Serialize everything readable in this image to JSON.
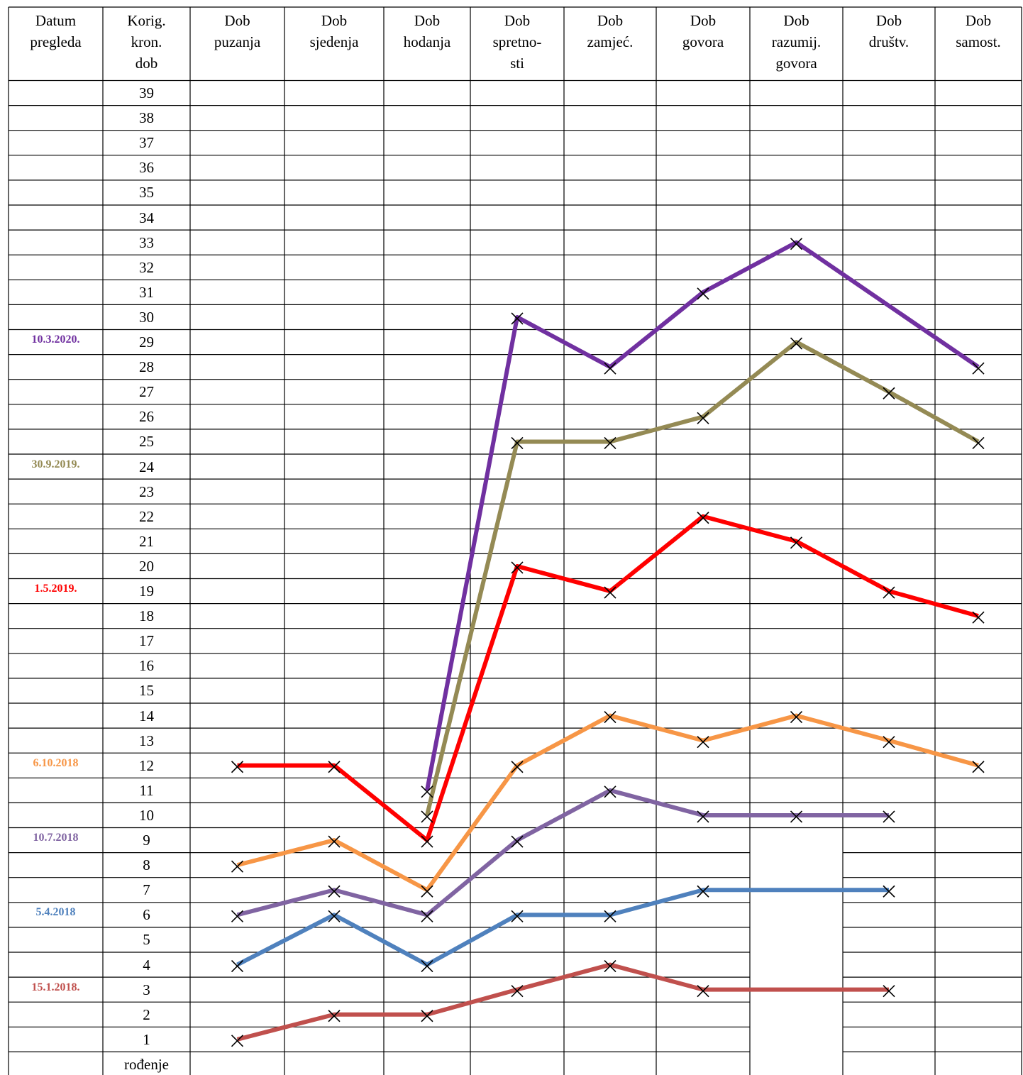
{
  "chart_data": {
    "type": "line",
    "date_header": "Datum\npregleda",
    "age_header": "Korig.\nkron.\ndob",
    "categories": [
      "Dob\npuzanja",
      "Dob\nsjedenja",
      "Dob\nhodanja",
      "Dob\nspretno-\nsti",
      "Dob\nzamjeć.",
      "Dob\ngovora",
      "Dob\nrazumij.\ngovora",
      "Dob\ndruštv.",
      "Dob\nsamost."
    ],
    "ylim": [
      0,
      39
    ],
    "yticks": [
      39,
      38,
      37,
      36,
      35,
      34,
      33,
      32,
      31,
      30,
      29,
      28,
      27,
      26,
      25,
      24,
      23,
      22,
      21,
      20,
      19,
      18,
      17,
      16,
      15,
      14,
      13,
      12,
      11,
      10,
      9,
      8,
      7,
      6,
      5,
      4,
      3,
      2,
      1,
      {
        "value": 0,
        "label": "rođenje"
      }
    ],
    "series": [
      {
        "name": "10.3.2020.",
        "color": "#7030a0",
        "row": 29,
        "values": [
          null,
          null,
          11,
          30,
          28,
          31,
          33,
          null,
          28
        ]
      },
      {
        "name": "30.9.2019.",
        "color": "#948a54",
        "row": 24,
        "values": [
          null,
          null,
          10,
          25,
          25,
          26,
          29,
          27,
          25
        ]
      },
      {
        "name": "1.5.2019.",
        "color": "#ff0000",
        "row": 19,
        "values": [
          12,
          12,
          9,
          20,
          19,
          22,
          21,
          19,
          18
        ]
      },
      {
        "name": "6.10.2018",
        "color": "#f79646",
        "row": 12,
        "values": [
          8,
          9,
          7,
          12,
          14,
          13,
          14,
          13,
          12
        ]
      },
      {
        "name": "10.7.2018",
        "color": "#8064a2",
        "row": 9,
        "values": [
          6,
          7,
          6,
          9,
          11,
          10,
          10,
          10,
          null
        ]
      },
      {
        "name": "5.4.2018",
        "color": "#4f81bd",
        "row": 6,
        "values": [
          4,
          6,
          4,
          6,
          6,
          7,
          null,
          7,
          null
        ]
      },
      {
        "name": "15.1.2018.",
        "color": "#c0504d",
        "row": 3,
        "values": [
          1,
          2,
          2,
          3,
          4,
          3,
          null,
          3,
          null
        ]
      }
    ]
  }
}
